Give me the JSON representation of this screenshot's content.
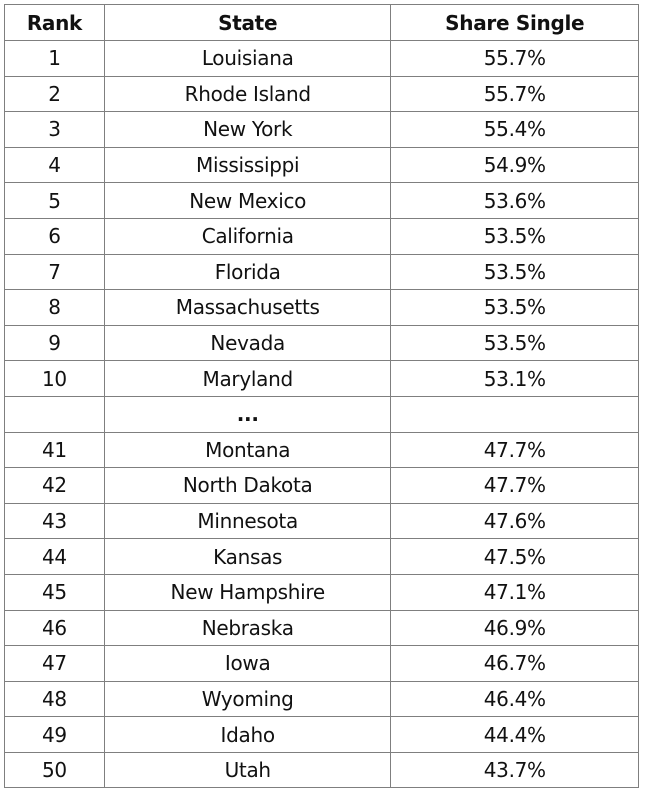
{
  "headers": {
    "rank": "Rank",
    "state": "State",
    "share": "Share Single"
  },
  "top_rows": [
    {
      "rank": "1",
      "state": "Louisiana",
      "share": "55.7%"
    },
    {
      "rank": "2",
      "state": "Rhode Island",
      "share": "55.7%"
    },
    {
      "rank": "3",
      "state": "New York",
      "share": "55.4%"
    },
    {
      "rank": "4",
      "state": "Mississippi",
      "share": "54.9%"
    },
    {
      "rank": "5",
      "state": "New Mexico",
      "share": "53.6%"
    },
    {
      "rank": "6",
      "state": "California",
      "share": "53.5%"
    },
    {
      "rank": "7",
      "state": "Florida",
      "share": "53.5%"
    },
    {
      "rank": "8",
      "state": "Massachusetts",
      "share": "53.5%"
    },
    {
      "rank": "9",
      "state": "Nevada",
      "share": "53.5%"
    },
    {
      "rank": "10",
      "state": "Maryland",
      "share": "53.1%"
    }
  ],
  "ellipsis": "...",
  "bottom_rows": [
    {
      "rank": "41",
      "state": "Montana",
      "share": "47.7%"
    },
    {
      "rank": "42",
      "state": "North Dakota",
      "share": "47.7%"
    },
    {
      "rank": "43",
      "state": "Minnesota",
      "share": "47.6%"
    },
    {
      "rank": "44",
      "state": "Kansas",
      "share": "47.5%"
    },
    {
      "rank": "45",
      "state": "New Hampshire",
      "share": "47.1%"
    },
    {
      "rank": "46",
      "state": "Nebraska",
      "share": "46.9%"
    },
    {
      "rank": "47",
      "state": "Iowa",
      "share": "46.7%"
    },
    {
      "rank": "48",
      "state": "Wyoming",
      "share": "46.4%"
    },
    {
      "rank": "49",
      "state": "Idaho",
      "share": "44.4%"
    },
    {
      "rank": "50",
      "state": "Utah",
      "share": "43.7%"
    }
  ]
}
